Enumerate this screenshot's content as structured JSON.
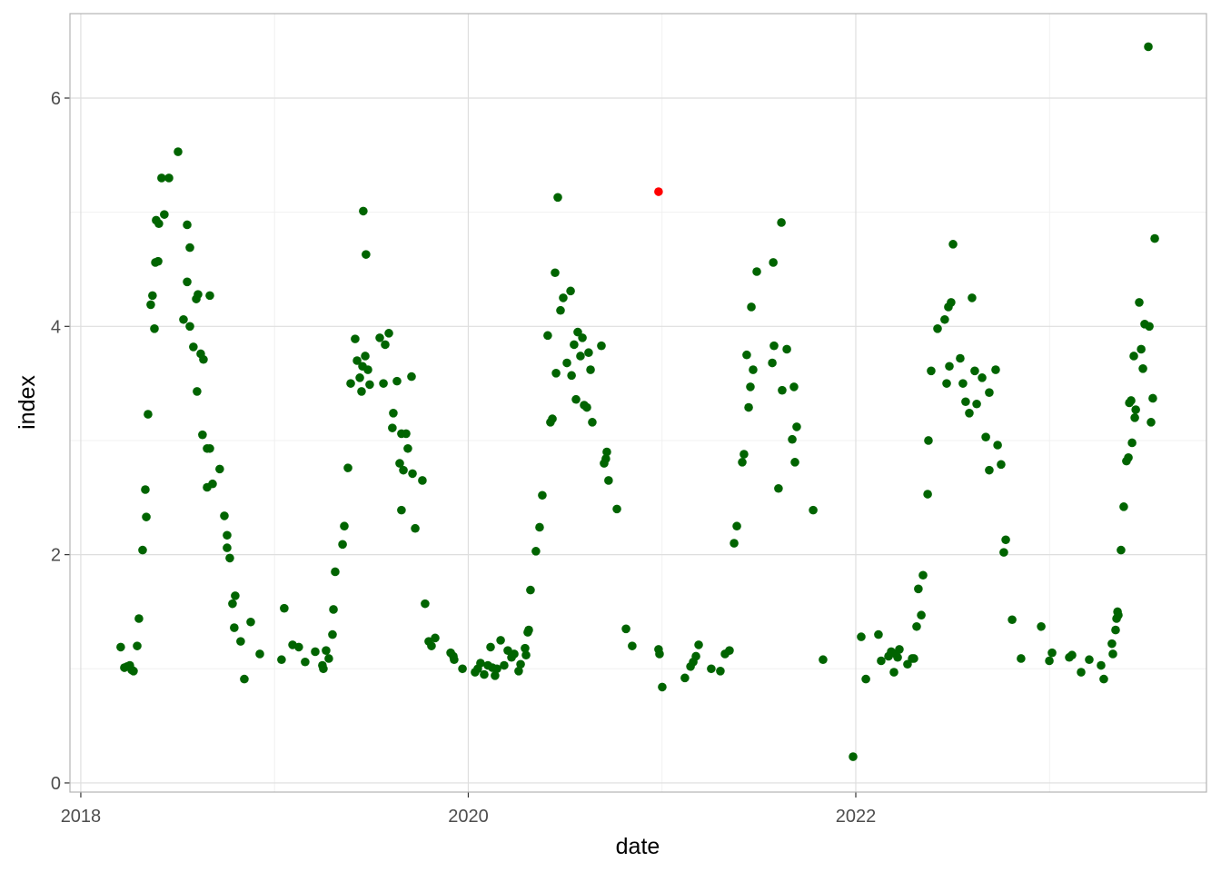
{
  "chart_data": {
    "type": "scatter",
    "xlabel": "date",
    "ylabel": "index",
    "xlim": [
      2017.944,
      2023.81
    ],
    "ylim": [
      -0.08,
      6.74
    ],
    "xticks": [
      2018,
      2020,
      2022
    ],
    "yticks": [
      0,
      2,
      4,
      6
    ],
    "xminor": [
      2019,
      2021,
      2023
    ],
    "yminor": [
      1,
      3,
      5
    ],
    "grid": true,
    "series": [
      {
        "color": "#006400",
        "x": [
          2018.206,
          2018.225,
          2018.239,
          2018.253,
          2018.263,
          2018.272,
          2018.291,
          2018.3,
          2018.319,
          2018.333,
          2018.338,
          2018.347,
          2018.361,
          2018.37,
          2018.38,
          2018.385,
          2018.399,
          2018.389,
          2018.403,
          2018.417,
          2018.431,
          2018.455,
          2018.502,
          2018.53,
          2018.549,
          2018.549,
          2018.563,
          2018.563,
          2018.581,
          2018.596,
          2018.605,
          2018.6,
          2018.619,
          2018.628,
          2018.633,
          2018.652,
          2018.666,
          2018.652,
          2018.666,
          2018.68,
          2018.717,
          2018.741,
          2018.755,
          2018.755,
          2018.769,
          2018.783,
          2018.797,
          2018.792,
          2018.825,
          2018.844,
          2018.877,
          2018.924,
          2019.036,
          2019.05,
          2019.093,
          2019.125,
          2019.158,
          2019.21,
          2019.247,
          2019.252,
          2019.266,
          2019.28,
          2019.299,
          2019.304,
          2019.313,
          2019.351,
          2019.36,
          2019.379,
          2019.393,
          2019.416,
          2019.426,
          2019.44,
          2019.449,
          2019.454,
          2019.458,
          2019.468,
          2019.472,
          2019.482,
          2019.491,
          2019.543,
          2019.562,
          2019.571,
          2019.59,
          2019.608,
          2019.613,
          2019.632,
          2019.646,
          2019.655,
          2019.655,
          2019.665,
          2019.679,
          2019.688,
          2019.707,
          2019.712,
          2019.726,
          2019.763,
          2019.777,
          2019.796,
          2019.81,
          2019.829,
          2019.909,
          2019.923,
          2019.927,
          2019.97,
          2020.035,
          2020.049,
          2020.063,
          2020.082,
          2020.101,
          2020.115,
          2020.124,
          2020.138,
          2020.148,
          2020.167,
          2020.185,
          2020.204,
          2020.223,
          2020.237,
          2020.26,
          2020.27,
          2020.293,
          2020.298,
          2020.307,
          2020.312,
          2020.321,
          2020.349,
          2020.368,
          2020.382,
          2020.41,
          2020.424,
          2020.434,
          2020.448,
          2020.453,
          2020.462,
          2020.476,
          2020.49,
          2020.509,
          2020.528,
          2020.533,
          2020.546,
          2020.556,
          2020.565,
          2020.579,
          2020.589,
          2020.598,
          2020.612,
          2020.621,
          2020.631,
          2020.64,
          2020.687,
          2020.701,
          2020.71,
          2020.715,
          2020.724,
          2020.767,
          2020.814,
          2020.846,
          2020.982,
          2020.987,
          2021.001,
          2021.118,
          2021.147,
          2021.161,
          2021.175,
          2021.189,
          2021.254,
          2021.301,
          2021.325,
          2021.348,
          2021.372,
          2021.386,
          2021.414,
          2021.423,
          2021.437,
          2021.447,
          2021.456,
          2021.461,
          2021.47,
          2021.489,
          2021.569,
          2021.574,
          2021.578,
          2021.601,
          2021.616,
          2021.62,
          2021.644,
          2021.672,
          2021.681,
          2021.686,
          2021.695,
          2021.78,
          2021.831,
          2021.986,
          2022.028,
          2022.052,
          2022.117,
          2022.131,
          2022.169,
          2022.183,
          2022.197,
          2022.206,
          2022.216,
          2022.225,
          2022.267,
          2022.291,
          2022.3,
          2022.314,
          2022.323,
          2022.338,
          2022.347,
          2022.371,
          2022.375,
          2022.389,
          2022.422,
          2022.459,
          2022.469,
          2022.478,
          2022.483,
          2022.492,
          2022.502,
          2022.539,
          2022.553,
          2022.567,
          2022.586,
          2022.6,
          2022.614,
          2022.624,
          2022.652,
          2022.671,
          2022.689,
          2022.689,
          2022.722,
          2022.732,
          2022.75,
          2022.764,
          2022.774,
          2022.807,
          2022.853,
          2022.957,
          2022.999,
          2023.013,
          2023.102,
          2023.116,
          2023.163,
          2023.205,
          2023.266,
          2023.28,
          2023.322,
          2023.327,
          2023.341,
          2023.346,
          2023.351,
          2023.355,
          2023.369,
          2023.383,
          2023.397,
          2023.407,
          2023.412,
          2023.421,
          2023.426,
          2023.435,
          2023.44,
          2023.445,
          2023.463,
          2023.473,
          2023.482,
          2023.491,
          2023.51,
          2023.515,
          2023.524,
          2023.533,
          2023.543
        ],
        "values": [
          1.19,
          1.01,
          1.02,
          1.03,
          0.99,
          0.98,
          1.2,
          1.44,
          2.04,
          2.57,
          2.33,
          3.23,
          4.19,
          4.27,
          3.98,
          4.56,
          4.57,
          4.93,
          4.9,
          5.3,
          4.98,
          5.3,
          5.53,
          4.06,
          4.39,
          4.89,
          4.0,
          4.69,
          3.82,
          4.24,
          4.28,
          3.43,
          3.76,
          3.05,
          3.71,
          2.93,
          2.93,
          2.59,
          4.27,
          2.62,
          2.75,
          2.34,
          2.17,
          2.06,
          1.97,
          1.57,
          1.64,
          1.36,
          1.24,
          0.91,
          1.41,
          1.13,
          1.08,
          1.53,
          1.21,
          1.19,
          1.06,
          1.15,
          1.03,
          1.0,
          1.16,
          1.09,
          1.3,
          1.52,
          1.85,
          2.09,
          2.25,
          2.76,
          3.5,
          3.89,
          3.7,
          3.55,
          3.43,
          3.65,
          5.01,
          3.74,
          4.63,
          3.62,
          3.49,
          3.9,
          3.5,
          3.84,
          3.94,
          3.11,
          3.24,
          3.52,
          2.8,
          3.06,
          2.39,
          2.74,
          3.06,
          2.93,
          3.56,
          2.71,
          2.23,
          2.65,
          1.57,
          1.24,
          1.2,
          1.27,
          1.14,
          1.11,
          1.08,
          1.0,
          0.97,
          1.0,
          1.05,
          0.95,
          1.03,
          1.19,
          1.01,
          0.94,
          1.0,
          1.25,
          1.03,
          1.16,
          1.1,
          1.13,
          0.98,
          1.04,
          1.18,
          1.12,
          1.32,
          1.34,
          1.69,
          2.03,
          2.24,
          2.52,
          3.92,
          3.16,
          3.19,
          4.47,
          3.59,
          5.13,
          4.14,
          4.25,
          3.68,
          4.31,
          3.57,
          3.84,
          3.36,
          3.95,
          3.74,
          3.9,
          3.31,
          3.29,
          3.77,
          3.62,
          3.16,
          3.83,
          2.8,
          2.84,
          2.9,
          2.65,
          2.4,
          1.35,
          1.2,
          1.17,
          1.13,
          0.84,
          0.92,
          1.02,
          1.06,
          1.11,
          1.21,
          1.0,
          0.98,
          1.13,
          1.16,
          2.1,
          2.25,
          2.81,
          2.88,
          3.75,
          3.29,
          3.47,
          4.17,
          3.62,
          4.48,
          3.68,
          4.56,
          3.83,
          2.58,
          4.91,
          3.44,
          3.8,
          3.01,
          3.47,
          2.81,
          3.12,
          2.39,
          1.08,
          0.23,
          1.28,
          0.91,
          1.3,
          1.07,
          1.11,
          1.15,
          0.97,
          1.13,
          1.1,
          1.17,
          1.04,
          1.09,
          1.09,
          1.37,
          1.7,
          1.47,
          1.82,
          2.53,
          3.0,
          3.61,
          3.98,
          4.06,
          3.5,
          4.17,
          3.65,
          4.21,
          4.72,
          3.72,
          3.5,
          3.34,
          3.24,
          4.25,
          3.61,
          3.32,
          3.55,
          3.03,
          3.42,
          2.74,
          3.62,
          2.96,
          2.79,
          2.02,
          2.13,
          1.43,
          1.09,
          1.37,
          1.07,
          1.14,
          1.1,
          1.12,
          0.97,
          1.08,
          1.03,
          0.91,
          1.22,
          1.13,
          1.34,
          1.44,
          1.5,
          1.47,
          2.04,
          2.42,
          2.82,
          2.85,
          3.33,
          3.35,
          2.98,
          3.74,
          3.2,
          3.27,
          4.21,
          3.8,
          3.63,
          4.02,
          6.45,
          4.0,
          3.16,
          3.37,
          4.77
        ]
      },
      {
        "color": "#ff0000",
        "x": [
          2020.982
        ],
        "values": [
          5.18
        ]
      }
    ]
  }
}
